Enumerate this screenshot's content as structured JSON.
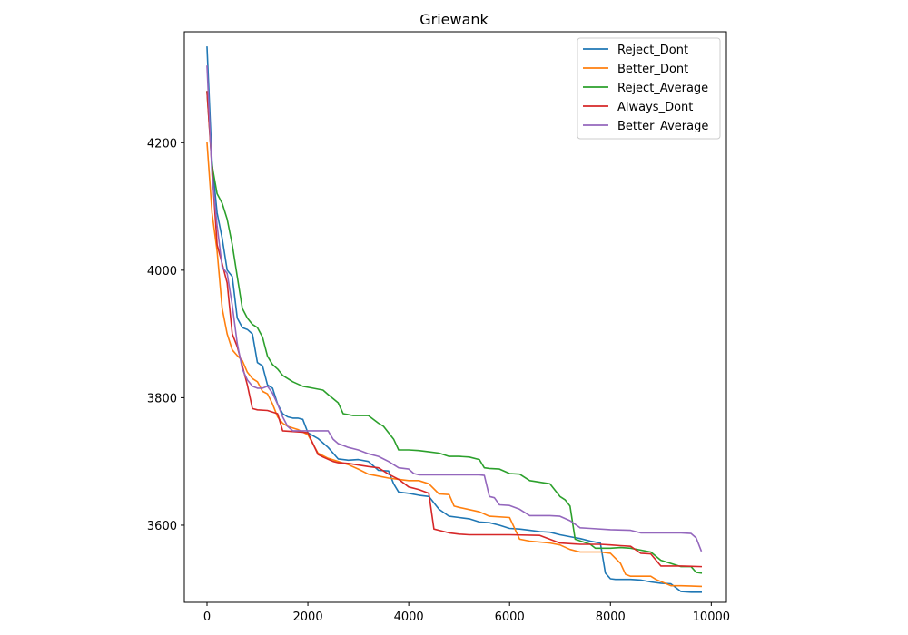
{
  "chart_data": {
    "type": "line",
    "title": "Griewank",
    "xlabel": "",
    "ylabel": "",
    "xlim": [
      -450,
      10300
    ],
    "ylim": [
      3479,
      4374
    ],
    "xticks": [
      0,
      2000,
      4000,
      6000,
      8000,
      10000
    ],
    "xtick_labels": [
      "0",
      "2000",
      "4000",
      "6000",
      "8000",
      "10000"
    ],
    "yticks": [
      3600,
      3800,
      4000,
      4200
    ],
    "ytick_labels": [
      "3600",
      "3800",
      "4000",
      "4200"
    ],
    "grid": false,
    "legend_position": "top-right",
    "series": [
      {
        "name": "Reject_Dont",
        "color": "#1f77b4",
        "x": [
          0,
          100,
          200,
          300,
          400,
          500,
          600,
          700,
          800,
          900,
          1000,
          1100,
          1200,
          1300,
          1400,
          1500,
          1600,
          1700,
          1800,
          1900,
          2000,
          2200,
          2400,
          2600,
          2800,
          3000,
          3200,
          3400,
          3600,
          3700,
          3800,
          4000,
          4200,
          4400,
          4600,
          4800,
          5000,
          5200,
          5400,
          5600,
          5800,
          6000,
          6200,
          6400,
          6600,
          6800,
          7000,
          7200,
          7400,
          7600,
          7800,
          7900,
          8000,
          8100,
          8400,
          8600,
          8800,
          9000,
          9200,
          9400,
          9600,
          9800
        ],
        "y": [
          4350,
          4170,
          4090,
          4050,
          4000,
          3990,
          3925,
          3910,
          3907,
          3900,
          3855,
          3850,
          3820,
          3815,
          3790,
          3775,
          3770,
          3768,
          3768,
          3766,
          3745,
          3736,
          3722,
          3704,
          3702,
          3703,
          3700,
          3686,
          3685,
          3665,
          3652,
          3650,
          3647,
          3645,
          3625,
          3614,
          3612,
          3610,
          3605,
          3604,
          3600,
          3595,
          3594,
          3592,
          3590,
          3589,
          3585,
          3582,
          3579,
          3575,
          3572,
          3525,
          3516,
          3515,
          3515,
          3514,
          3511,
          3509,
          3508,
          3496,
          3495,
          3495
        ]
      },
      {
        "name": "Better_Dont",
        "color": "#ff7f0e",
        "x": [
          0,
          100,
          200,
          300,
          400,
          500,
          600,
          700,
          800,
          900,
          1000,
          1100,
          1200,
          1300,
          1400,
          1500,
          1600,
          1800,
          2000,
          2200,
          2400,
          2600,
          2800,
          3000,
          3200,
          3400,
          3600,
          3800,
          4000,
          4200,
          4400,
          4600,
          4800,
          4900,
          5000,
          5400,
          5600,
          6000,
          6200,
          6400,
          6800,
          7000,
          7200,
          7400,
          7800,
          8000,
          8200,
          8300,
          8400,
          8800,
          8900,
          9200,
          9400,
          9800
        ],
        "y": [
          4200,
          4090,
          4030,
          3940,
          3900,
          3875,
          3866,
          3858,
          3840,
          3830,
          3825,
          3810,
          3806,
          3790,
          3770,
          3760,
          3755,
          3750,
          3742,
          3713,
          3705,
          3700,
          3695,
          3688,
          3680,
          3677,
          3674,
          3672,
          3670,
          3670,
          3665,
          3649,
          3648,
          3630,
          3628,
          3621,
          3614,
          3612,
          3578,
          3575,
          3572,
          3569,
          3562,
          3558,
          3558,
          3556,
          3540,
          3523,
          3520,
          3520,
          3515,
          3505,
          3505,
          3504
        ]
      },
      {
        "name": "Reject_Average",
        "color": "#2ca02c",
        "x": [
          0,
          100,
          200,
          300,
          400,
          500,
          600,
          700,
          800,
          900,
          1000,
          1100,
          1200,
          1300,
          1400,
          1500,
          1700,
          1900,
          2100,
          2300,
          2400,
          2600,
          2700,
          2900,
          3200,
          3400,
          3500,
          3700,
          3800,
          4000,
          4200,
          4400,
          4600,
          4800,
          5000,
          5200,
          5400,
          5500,
          5600,
          5800,
          6000,
          6200,
          6400,
          6800,
          7000,
          7100,
          7200,
          7300,
          7600,
          7700,
          8000,
          8200,
          8400,
          8800,
          9000,
          9200,
          9400,
          9600,
          9700,
          9800
        ],
        "y": [
          4280,
          4165,
          4120,
          4105,
          4080,
          4040,
          3990,
          3940,
          3925,
          3915,
          3910,
          3895,
          3865,
          3852,
          3845,
          3835,
          3825,
          3818,
          3815,
          3812,
          3805,
          3792,
          3775,
          3772,
          3772,
          3760,
          3755,
          3735,
          3718,
          3718,
          3717,
          3715,
          3713,
          3708,
          3708,
          3707,
          3703,
          3690,
          3689,
          3688,
          3681,
          3680,
          3670,
          3665,
          3645,
          3640,
          3630,
          3578,
          3570,
          3564,
          3564,
          3565,
          3564,
          3558,
          3545,
          3540,
          3535,
          3535,
          3526,
          3525
        ]
      },
      {
        "name": "Always_Dont",
        "color": "#d62728",
        "x": [
          0,
          100,
          200,
          300,
          400,
          500,
          600,
          700,
          800,
          900,
          1000,
          1200,
          1400,
          1500,
          1700,
          1900,
          2000,
          2200,
          2300,
          2500,
          2600,
          2800,
          3200,
          3400,
          3600,
          3800,
          4000,
          4200,
          4400,
          4500,
          4600,
          4800,
          5000,
          5200,
          5600,
          6000,
          6600,
          7000,
          7400,
          7800,
          8000,
          8200,
          8400,
          8600,
          8800,
          9000,
          9400,
          9800
        ],
        "y": [
          4280,
          4160,
          4040,
          4010,
          3980,
          3900,
          3880,
          3850,
          3820,
          3783,
          3781,
          3780,
          3775,
          3748,
          3747,
          3746,
          3745,
          3711,
          3707,
          3700,
          3698,
          3697,
          3692,
          3690,
          3680,
          3672,
          3660,
          3656,
          3650,
          3594,
          3592,
          3588,
          3586,
          3585,
          3585,
          3585,
          3584,
          3572,
          3570,
          3570,
          3569,
          3568,
          3567,
          3556,
          3555,
          3536,
          3536,
          3535
        ]
      },
      {
        "name": "Better_Average",
        "color": "#9467bd",
        "x": [
          0,
          100,
          200,
          300,
          400,
          500,
          600,
          700,
          800,
          900,
          1000,
          1100,
          1200,
          1300,
          1400,
          1500,
          1600,
          1700,
          1800,
          2000,
          2200,
          2400,
          2500,
          2600,
          2800,
          3000,
          3200,
          3400,
          3600,
          3800,
          4000,
          4100,
          4200,
          4400,
          4800,
          5000,
          5400,
          5500,
          5600,
          5700,
          5800,
          6000,
          6200,
          6400,
          6800,
          7000,
          7200,
          7400,
          7600,
          8000,
          8400,
          8600,
          8800,
          9400,
          9600,
          9700,
          9800
        ],
        "y": [
          4320,
          4150,
          4070,
          4005,
          3995,
          3945,
          3885,
          3845,
          3828,
          3818,
          3815,
          3815,
          3818,
          3807,
          3790,
          3770,
          3755,
          3748,
          3748,
          3748,
          3748,
          3748,
          3735,
          3728,
          3722,
          3718,
          3712,
          3708,
          3700,
          3690,
          3688,
          3681,
          3679,
          3679,
          3679,
          3679,
          3679,
          3678,
          3645,
          3643,
          3632,
          3631,
          3625,
          3615,
          3615,
          3614,
          3607,
          3596,
          3595,
          3593,
          3592,
          3588,
          3588,
          3588,
          3587,
          3580,
          3560
        ]
      }
    ]
  }
}
